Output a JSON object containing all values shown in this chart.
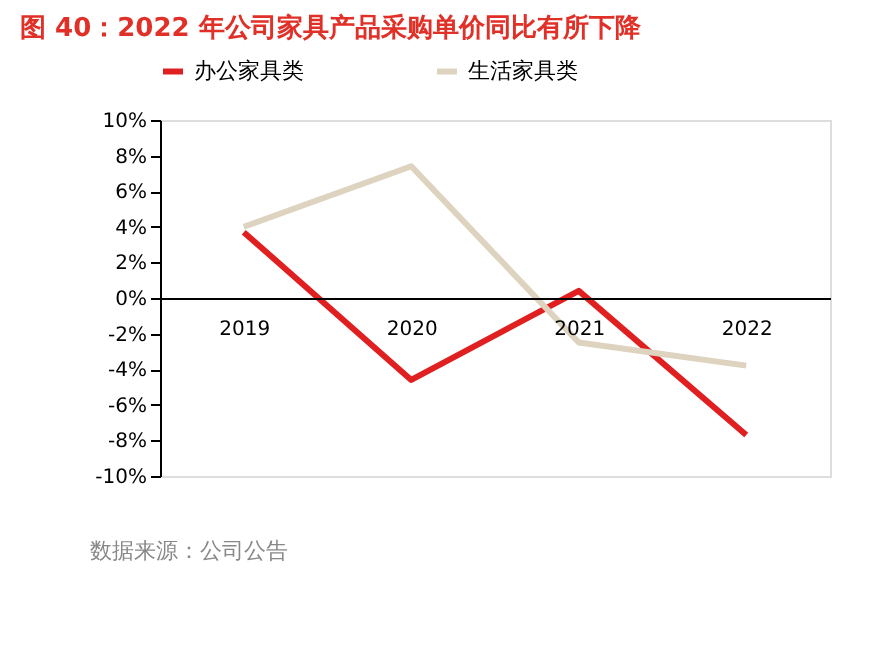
{
  "chart_data": {
    "type": "line",
    "title": "图 40：2022 年公司家具产品采购单价同比有所下降",
    "categories": [
      "2019",
      "2020",
      "2021",
      "2022"
    ],
    "series": [
      {
        "name": "办公家具类",
        "color": "#e02020",
        "values": [
          3.7,
          -4.6,
          0.4,
          -7.7
        ]
      },
      {
        "name": "生活家具类",
        "color": "#ddd3bf",
        "values": [
          4.0,
          7.4,
          -2.5,
          -3.8
        ]
      }
    ],
    "ylim": [
      -10,
      10
    ],
    "yticks": [
      {
        "value": -10,
        "label": "-10%"
      },
      {
        "value": -8,
        "label": "-8%"
      },
      {
        "value": -6,
        "label": "-6%"
      },
      {
        "value": -4,
        "label": "-4%"
      },
      {
        "value": -2,
        "label": "-2%"
      },
      {
        "value": 0,
        "label": "0%"
      },
      {
        "value": 2,
        "label": "2%"
      },
      {
        "value": 4,
        "label": "4%"
      },
      {
        "value": 6,
        "label": "6%"
      },
      {
        "value": 8,
        "label": "8%"
      },
      {
        "value": 10,
        "label": "10%"
      }
    ],
    "grid": false,
    "legend": "top",
    "marker": "none",
    "line_style": "solid",
    "annotations": [
      "数据来源：公司公告"
    ]
  }
}
